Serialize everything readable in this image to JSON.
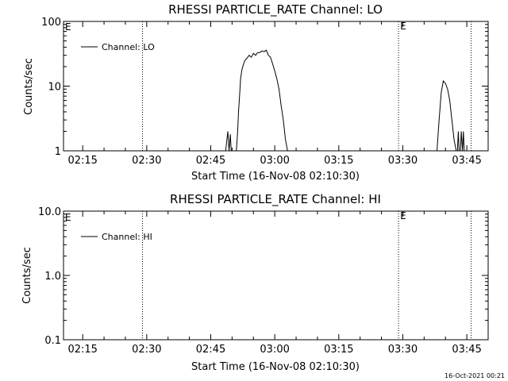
{
  "footer_timestamp": "16-Oct-2021 00:21",
  "colors": {
    "background": "#ffffff",
    "foreground": "#000000"
  },
  "chart_data": [
    {
      "type": "line",
      "title": "RHESSI PARTICLE_RATE Channel: LO",
      "xlabel": "Start Time (16-Nov-08 02:10:30)",
      "ylabel": "Counts/sec",
      "x_ticks": [
        "02:15",
        "02:30",
        "02:45",
        "03:00",
        "03:15",
        "03:30",
        "03:45"
      ],
      "x_tick_minutes": [
        15,
        30,
        45,
        60,
        75,
        90,
        105
      ],
      "xlim_minutes": [
        10.5,
        110
      ],
      "ylog": true,
      "ylim": [
        1,
        100
      ],
      "y_ticks": [
        "1",
        "10",
        "100"
      ],
      "y_tick_values": [
        1,
        10,
        100
      ],
      "legend": {
        "entry": "Channel: LO",
        "position": "top-left"
      },
      "markers": [
        {
          "x_minutes": 29,
          "label": ""
        },
        {
          "x_minutes": 89,
          "label": "E"
        },
        {
          "x_minutes": 106,
          "label": ""
        }
      ],
      "corner_label": "E",
      "series": [
        {
          "name": "Channel: LO",
          "x_minutes": [
            48.5,
            49.0,
            49.3,
            49.6,
            49.8,
            51.0,
            51.3,
            51.5,
            51.8,
            52.0,
            52.3,
            52.6,
            53.0,
            53.5,
            54.0,
            54.5,
            55.0,
            55.5,
            56.0,
            56.5,
            57.0,
            57.5,
            58.0,
            58.5,
            59.0,
            59.5,
            60.0,
            60.5,
            61.0,
            61.5,
            62.0,
            62.5,
            63.0
          ],
          "values": [
            1,
            2,
            1,
            1.8,
            1,
            1,
            2,
            4,
            8,
            13,
            18,
            21,
            25,
            27,
            30,
            28,
            32,
            30,
            33,
            33,
            35,
            34,
            36,
            30,
            28,
            22,
            17,
            13,
            9,
            5,
            3,
            1.5,
            1
          ]
        },
        {
          "name": "Channel: LO",
          "x_minutes": [
            98.0,
            98.5,
            99.0,
            99.5,
            100.0,
            100.5,
            101.0,
            101.5,
            102.0,
            102.5,
            102.8,
            103.0,
            103.2,
            103.5,
            103.7,
            104.0,
            104.2,
            104.4
          ],
          "values": [
            1,
            3,
            8,
            12,
            11,
            9,
            6,
            3,
            1.5,
            1,
            1,
            2,
            1,
            1,
            2,
            1,
            2,
            1
          ]
        }
      ]
    },
    {
      "type": "line",
      "title": "RHESSI PARTICLE_RATE Channel: HI",
      "xlabel": "Start Time (16-Nov-08 02:10:30)",
      "ylabel": "Counts/sec",
      "x_ticks": [
        "02:15",
        "02:30",
        "02:45",
        "03:00",
        "03:15",
        "03:30",
        "03:45"
      ],
      "x_tick_minutes": [
        15,
        30,
        45,
        60,
        75,
        90,
        105
      ],
      "xlim_minutes": [
        10.5,
        110
      ],
      "ylog": true,
      "ylim": [
        0.1,
        10
      ],
      "y_ticks": [
        "0.1",
        "1.0",
        "10.0"
      ],
      "y_tick_values": [
        0.1,
        1,
        10
      ],
      "legend": {
        "entry": "Channel: HI",
        "position": "top-left"
      },
      "markers": [
        {
          "x_minutes": 29,
          "label": ""
        },
        {
          "x_minutes": 89,
          "label": "E"
        },
        {
          "x_minutes": 106,
          "label": ""
        }
      ],
      "corner_label": "E",
      "series": []
    }
  ]
}
